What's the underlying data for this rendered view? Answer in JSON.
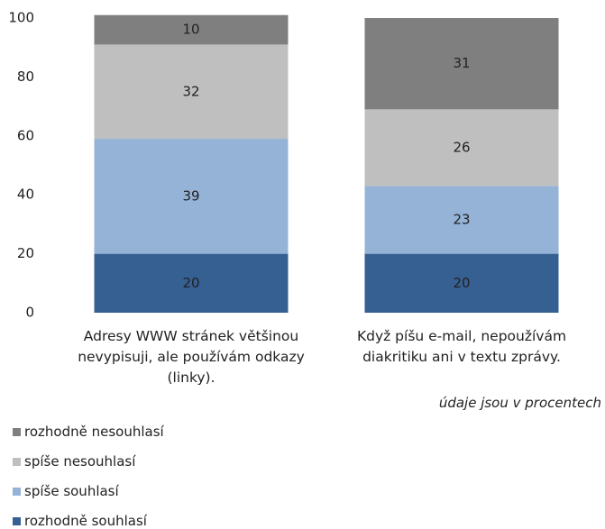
{
  "chart_data": {
    "type": "stacked_bar",
    "categories": [
      "Adresy WWW stránek většinou nevypisuji, ale používám odkazy (linky).",
      "Když píšu e-mail, nepoužívám diakritiku ani v textu zprávy."
    ],
    "series": [
      {
        "name": "rozhodně souhlasí",
        "color": "#365f92",
        "values": [
          20,
          20
        ]
      },
      {
        "name": "spíše souhlasí",
        "color": "#95b3d7",
        "values": [
          39,
          23
        ]
      },
      {
        "name": "spíše nesouhlasí",
        "color": "#bfbfbf",
        "values": [
          32,
          26
        ]
      },
      {
        "name": "rozhodně nesouhlasí",
        "color": "#7f7f7f",
        "values": [
          10,
          31
        ]
      }
    ],
    "ylim": [
      0,
      100
    ],
    "yticks": [
      0,
      20,
      40,
      60,
      80,
      100
    ],
    "note": "údaje jsou v procentech"
  }
}
